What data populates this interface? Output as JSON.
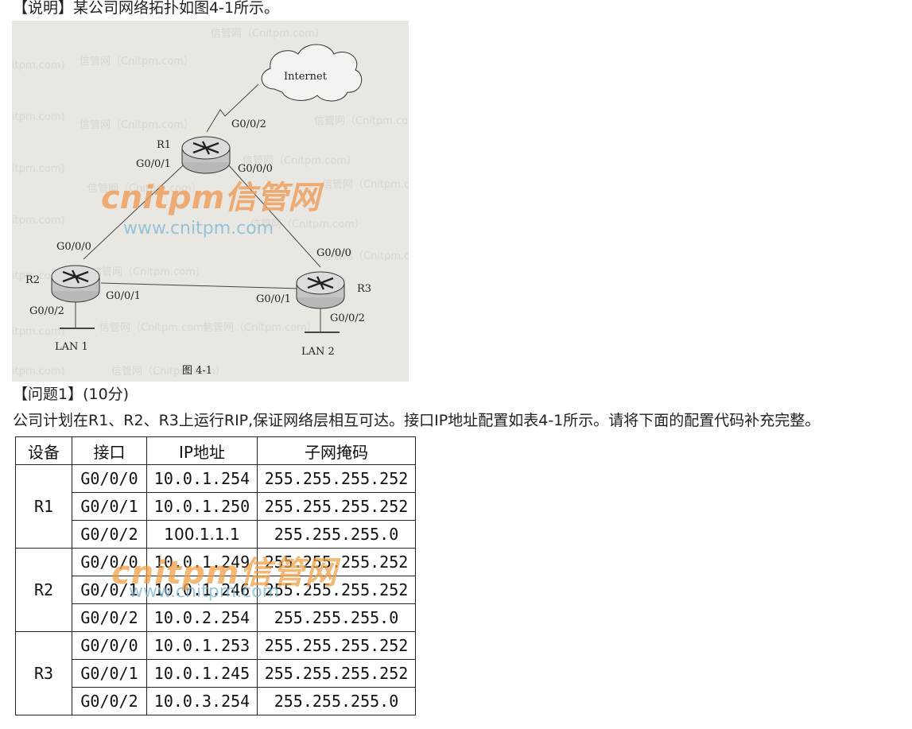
{
  "intro_text": "【说明】某公司网络拓扑如图4-1所示。",
  "figure": {
    "cloud_label": "Internet",
    "routers": {
      "r1": {
        "name": "R1",
        "ports": [
          "G0/0/2",
          "G0/0/1",
          "G0/0/0"
        ]
      },
      "r2": {
        "name": "R2",
        "ports": [
          "G0/0/0",
          "G0/0/1",
          "G0/0/2"
        ]
      },
      "r3": {
        "name": "R3",
        "ports": [
          "G0/0/0",
          "G0/0/1",
          "G0/0/2"
        ]
      }
    },
    "lan1": "LAN 1",
    "lan2": "LAN 2",
    "caption": "图 4-1",
    "watermark_brand": "cnitpm信管网",
    "watermark_url": "www.cnitpm.com",
    "watermark_small": "信管网（Cnitpm.com）"
  },
  "question_title": "【问题1】(10分)",
  "question_text": "公司计划在R1、R2、R3上运行RIP,保证网络层相互可达。接口IP地址配置如表4-1所示。请将下面的配置代码补充完整。",
  "table": {
    "headers": [
      "设备",
      "接口",
      "IP地址",
      "子网掩码"
    ],
    "groups": [
      {
        "device": "R1",
        "rows": [
          {
            "iface": "G0/0/0",
            "ip": "10.0.1.254",
            "mask": "255.255.255.252"
          },
          {
            "iface": "G0/0/1",
            "ip": "10.0.1.250",
            "mask": "255.255.255.252"
          },
          {
            "iface": "G0/0/2",
            "ip": "100.1.1.1",
            "mask": "255.255.255.0"
          }
        ]
      },
      {
        "device": "R2",
        "rows": [
          {
            "iface": "G0/0/0",
            "ip": "10.0.1.249",
            "mask": "255.255.255.252"
          },
          {
            "iface": "G0/0/1",
            "ip": "10.0.1.246",
            "mask": "255.255.255.252"
          },
          {
            "iface": "G0/0/2",
            "ip": "10.0.2.254",
            "mask": "255.255.255.0"
          }
        ]
      },
      {
        "device": "R3",
        "rows": [
          {
            "iface": "G0/0/0",
            "ip": "10.0.1.253",
            "mask": "255.255.255.252"
          },
          {
            "iface": "G0/0/1",
            "ip": "10.0.1.245",
            "mask": "255.255.255.252"
          },
          {
            "iface": "G0/0/2",
            "ip": "10.0.3.254",
            "mask": "255.255.255.0"
          }
        ]
      }
    ],
    "watermark_brand": "cnitpm信管网",
    "watermark_url": "www.cnitpm.com"
  }
}
